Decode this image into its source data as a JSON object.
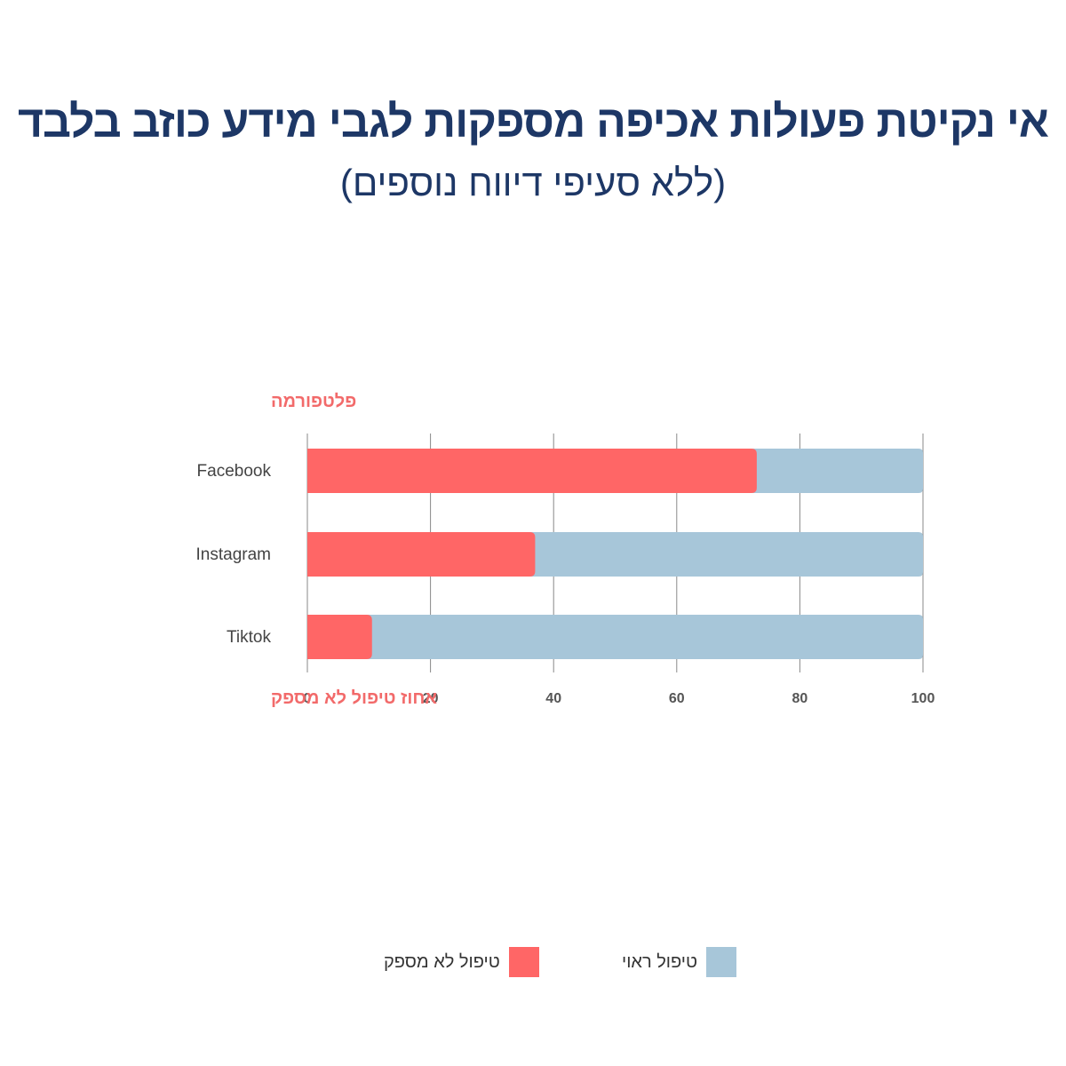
{
  "title": "אי נקיטת פעולות אכיפה מספקות לגבי מידע כוזב בלבד",
  "subtitle": "(ללא סעיפי דיווח נוספים)",
  "colors": {
    "inadequate": "#ff6666",
    "adequate": "#a7c6d9",
    "title": "#1d3766",
    "axis_title": "#f26a6a"
  },
  "chart_data": {
    "type": "bar",
    "orientation": "horizontal",
    "stacked": true,
    "categories": [
      "Facebook",
      "Instagram",
      "Tiktok"
    ],
    "series": [
      {
        "name": "טיפול לא מספק",
        "values": [
          73,
          37,
          10.5
        ]
      },
      {
        "name": "טיפול ראוי",
        "values": [
          27,
          63,
          89.5
        ]
      }
    ],
    "xlabel": "אחוז טיפול לא מספק",
    "ylabel": "פלטפורמה",
    "xlim": [
      0,
      100
    ],
    "xticks": [
      "0",
      "20",
      "40",
      "60",
      "80",
      "100"
    ],
    "grid": true,
    "legend_position": "bottom"
  },
  "legend": {
    "adequate_label": "טיפול ראוי",
    "inadequate_label": "טיפול לא מספק"
  }
}
